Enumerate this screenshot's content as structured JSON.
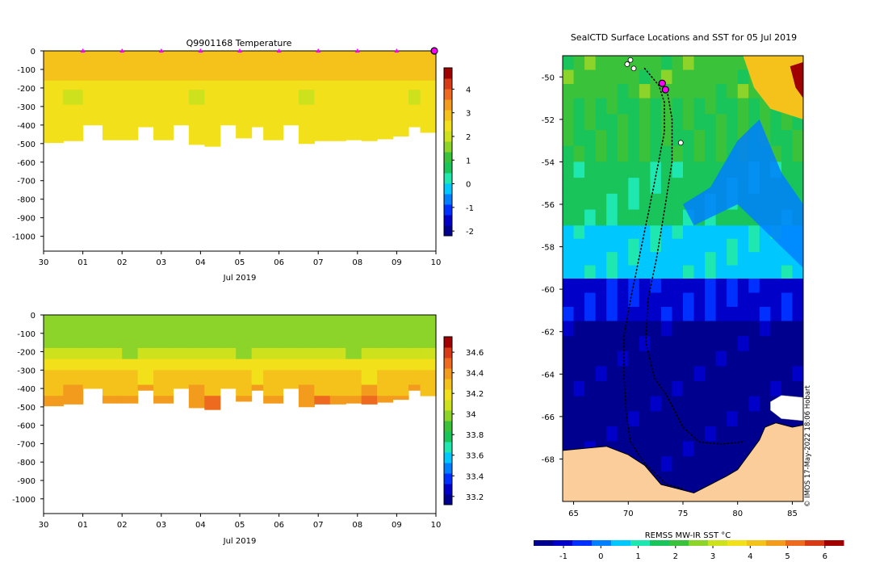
{
  "palette": [
    "#00008f",
    "#0000c8",
    "#0030ff",
    "#0080ff",
    "#00c8ff",
    "#1ee8b0",
    "#19c45a",
    "#3ac23a",
    "#8cd42a",
    "#cde11c",
    "#f2e01a",
    "#f5c21b",
    "#f39b1d",
    "#ee6a1e",
    "#d83a16",
    "#a00000"
  ],
  "land_color": "#fbcd9a",
  "marker_color": "#ff00ff",
  "chart_data": [
    {
      "id": "temperature-section",
      "type": "heatmap",
      "title": "Q9901168  Temperature",
      "xlabel": "Jul 2019",
      "x_ticks": [
        "30",
        "01",
        "02",
        "03",
        "04",
        "05",
        "06",
        "07",
        "08",
        "09",
        "10"
      ],
      "x_range": [
        0,
        10
      ],
      "y_ticks": [
        0,
        -100,
        -200,
        -300,
        -400,
        -500,
        -600,
        -700,
        -800,
        -900,
        -1000
      ],
      "y_range": [
        -1080,
        0
      ],
      "profile_markers_day": [
        1,
        2,
        3,
        4,
        5,
        6,
        7,
        8,
        9
      ],
      "last_position_day": 10,
      "profiles": [
        {
          "day": 0.0,
          "depth": 495
        },
        {
          "day": 0.5,
          "depth": 485
        },
        {
          "day": 1.0,
          "depth": 400
        },
        {
          "day": 1.5,
          "depth": 480
        },
        {
          "day": 2.0,
          "depth": 480
        },
        {
          "day": 2.4,
          "depth": 410
        },
        {
          "day": 2.8,
          "depth": 480
        },
        {
          "day": 3.3,
          "depth": 400
        },
        {
          "day": 3.7,
          "depth": 505
        },
        {
          "day": 4.1,
          "depth": 515
        },
        {
          "day": 4.5,
          "depth": 400
        },
        {
          "day": 4.9,
          "depth": 470
        },
        {
          "day": 5.3,
          "depth": 410
        },
        {
          "day": 5.6,
          "depth": 480
        },
        {
          "day": 6.1,
          "depth": 400
        },
        {
          "day": 6.5,
          "depth": 500
        },
        {
          "day": 6.9,
          "depth": 485
        },
        {
          "day": 7.3,
          "depth": 485
        },
        {
          "day": 7.7,
          "depth": 480
        },
        {
          "day": 8.1,
          "depth": 485
        },
        {
          "day": 8.5,
          "depth": 475
        },
        {
          "day": 8.9,
          "depth": 460
        },
        {
          "day": 9.3,
          "depth": 410
        },
        {
          "day": 9.6,
          "depth": 440
        }
      ],
      "colorbar": {
        "min": -2.2,
        "max": 4.9,
        "ticks": [
          4,
          3,
          2,
          1,
          0,
          -1,
          -2
        ]
      },
      "layers": [
        {
          "top": 0,
          "bottom": 160,
          "value": 2.95
        },
        {
          "top": 160,
          "bottom": 210,
          "value": 2.55
        },
        {
          "top": 210,
          "bottom": 290,
          "value": 2.35
        },
        {
          "top": 290,
          "bottom": 520,
          "value": 2.45
        }
      ]
    },
    {
      "id": "salinity-section",
      "type": "heatmap",
      "title": "",
      "xlabel": "Jul 2019",
      "x_ticks": [
        "30",
        "01",
        "02",
        "03",
        "04",
        "05",
        "06",
        "07",
        "08",
        "09",
        "10"
      ],
      "x_range": [
        0,
        10
      ],
      "y_ticks": [
        0,
        -100,
        -200,
        -300,
        -400,
        -500,
        -600,
        -700,
        -800,
        -900,
        -1000
      ],
      "y_range": [
        -1080,
        0
      ],
      "profiles": [
        {
          "day": 0.0,
          "depth": 495
        },
        {
          "day": 0.5,
          "depth": 485
        },
        {
          "day": 1.0,
          "depth": 400
        },
        {
          "day": 1.5,
          "depth": 480
        },
        {
          "day": 2.0,
          "depth": 480
        },
        {
          "day": 2.4,
          "depth": 410
        },
        {
          "day": 2.8,
          "depth": 480
        },
        {
          "day": 3.3,
          "depth": 400
        },
        {
          "day": 3.7,
          "depth": 505
        },
        {
          "day": 4.1,
          "depth": 515
        },
        {
          "day": 4.5,
          "depth": 400
        },
        {
          "day": 4.9,
          "depth": 470
        },
        {
          "day": 5.3,
          "depth": 410
        },
        {
          "day": 5.6,
          "depth": 480
        },
        {
          "day": 6.1,
          "depth": 400
        },
        {
          "day": 6.5,
          "depth": 500
        },
        {
          "day": 6.9,
          "depth": 485
        },
        {
          "day": 7.3,
          "depth": 485
        },
        {
          "day": 7.7,
          "depth": 480
        },
        {
          "day": 8.1,
          "depth": 485
        },
        {
          "day": 8.5,
          "depth": 475
        },
        {
          "day": 8.9,
          "depth": 460
        },
        {
          "day": 9.3,
          "depth": 410
        },
        {
          "day": 9.6,
          "depth": 440
        }
      ],
      "colorbar": {
        "min": 33.12,
        "max": 34.75,
        "ticks": [
          34.6,
          34.4,
          34.2,
          34,
          33.8,
          33.6,
          33.4,
          33.2
        ]
      },
      "layers": [
        {
          "top": 0,
          "bottom": 180,
          "value": 33.97
        },
        {
          "top": 180,
          "bottom": 240,
          "value": 34.06
        },
        {
          "top": 240,
          "bottom": 300,
          "value": 34.18
        },
        {
          "top": 300,
          "bottom": 380,
          "value": 34.26
        },
        {
          "top": 380,
          "bottom": 440,
          "value": 34.33
        },
        {
          "top": 440,
          "bottom": 520,
          "value": 34.43
        }
      ]
    },
    {
      "id": "sst-map",
      "type": "heatmap",
      "title": "SealCTD Surface Locations and SST for 05 Jul 2019",
      "xlabel": "REMSS MW-IR SST °C",
      "x_ticks": [
        65,
        70,
        75,
        80,
        85
      ],
      "x_range": [
        64,
        86
      ],
      "y_ticks": [
        -50,
        -52,
        -54,
        -56,
        -58,
        -60,
        -62,
        -64,
        -66,
        -68
      ],
      "y_range": [
        -70,
        -49
      ],
      "colorbar": {
        "min": -1.8,
        "max": 6.5,
        "ticks": [
          -1,
          0,
          1,
          2,
          3,
          4,
          5,
          6
        ]
      },
      "sst_bands": [
        {
          "lat_from": -49,
          "lat_to": -51,
          "value": 2.1
        },
        {
          "lat_from": -51,
          "lat_to": -54,
          "value": 1.8
        },
        {
          "lat_from": -54,
          "lat_to": -57,
          "value": 1.5
        },
        {
          "lat_from": -57,
          "lat_to": -59.5,
          "value": 0.6
        },
        {
          "lat_from": -59.5,
          "lat_to": -61.5,
          "value": -0.9
        },
        {
          "lat_from": -61.5,
          "lat_to": -70,
          "value": -1.6
        }
      ],
      "cold_tongue": [
        [
          80,
          -56
        ],
        [
          76,
          -57
        ],
        [
          75,
          -56
        ],
        [
          77.5,
          -55.2
        ],
        [
          80,
          -53
        ],
        [
          82,
          -52
        ],
        [
          84,
          -54.5
        ],
        [
          86,
          -56
        ],
        [
          86,
          -59
        ]
      ],
      "warm_corner": [
        [
          80.5,
          -49
        ],
        [
          86,
          -49
        ],
        [
          86,
          -52
        ],
        [
          83,
          -51.5
        ],
        [
          81.5,
          -50.5
        ]
      ],
      "hot_spot": [
        [
          84.8,
          -49.5
        ],
        [
          86,
          -49.3
        ],
        [
          86,
          -51
        ],
        [
          85.3,
          -50.5
        ]
      ],
      "track_a": [
        [
          71.5,
          -49.6
        ],
        [
          72.8,
          -50.4
        ],
        [
          73.3,
          -51.2
        ],
        [
          73.3,
          -52.6
        ],
        [
          72.7,
          -54.2
        ],
        [
          71.8,
          -56.5
        ],
        [
          71,
          -58.5
        ],
        [
          70.2,
          -60.5
        ],
        [
          69.6,
          -62.2
        ],
        [
          69.6,
          -64
        ],
        [
          69.8,
          -65.8
        ],
        [
          70.2,
          -67.2
        ],
        [
          71.5,
          -68.2
        ],
        [
          73.5,
          -69.2
        ],
        [
          75,
          -69.4
        ]
      ],
      "track_b": [
        [
          73.5,
          -50.5
        ],
        [
          74,
          -52
        ],
        [
          74,
          -54
        ],
        [
          73.4,
          -56
        ],
        [
          72.6,
          -58.5
        ],
        [
          71.8,
          -60.5
        ],
        [
          71.6,
          -62.5
        ],
        [
          72.4,
          -64.2
        ],
        [
          73.5,
          -65
        ],
        [
          75,
          -66.5
        ],
        [
          76.5,
          -67.2
        ],
        [
          78.5,
          -67.3
        ],
        [
          80.5,
          -67.2
        ]
      ],
      "coast": [
        [
          64,
          -67.6
        ],
        [
          66,
          -67.5
        ],
        [
          68,
          -67.4
        ],
        [
          70,
          -67.8
        ],
        [
          71.5,
          -68.3
        ],
        [
          73,
          -69.2
        ],
        [
          74.5,
          -69.4
        ],
        [
          76,
          -69.6
        ],
        [
          77.5,
          -69.2
        ],
        [
          79,
          -68.8
        ],
        [
          80,
          -68.5
        ],
        [
          81,
          -67.8
        ],
        [
          82,
          -67.1
        ],
        [
          82.5,
          -66.5
        ],
        [
          83.5,
          -66.3
        ],
        [
          85,
          -66.5
        ],
        [
          86,
          -66.4
        ],
        [
          86,
          -70
        ],
        [
          64,
          -70
        ]
      ],
      "ice_patch": [
        [
          83,
          -65.3
        ],
        [
          84,
          -65
        ],
        [
          86,
          -65.1
        ],
        [
          86,
          -66.2
        ],
        [
          84,
          -66.1
        ],
        [
          83,
          -65.7
        ]
      ],
      "seal_positions": [
        [
          73.1,
          -50.3
        ],
        [
          73.4,
          -50.6
        ]
      ],
      "profile_points": [
        [
          70.2,
          -49.2
        ],
        [
          70.5,
          -49.6
        ],
        [
          69.9,
          -49.4
        ],
        [
          74.8,
          -53.1
        ]
      ]
    }
  ],
  "credit": "© IMOS 17-May-2022 18:06 Hobart"
}
